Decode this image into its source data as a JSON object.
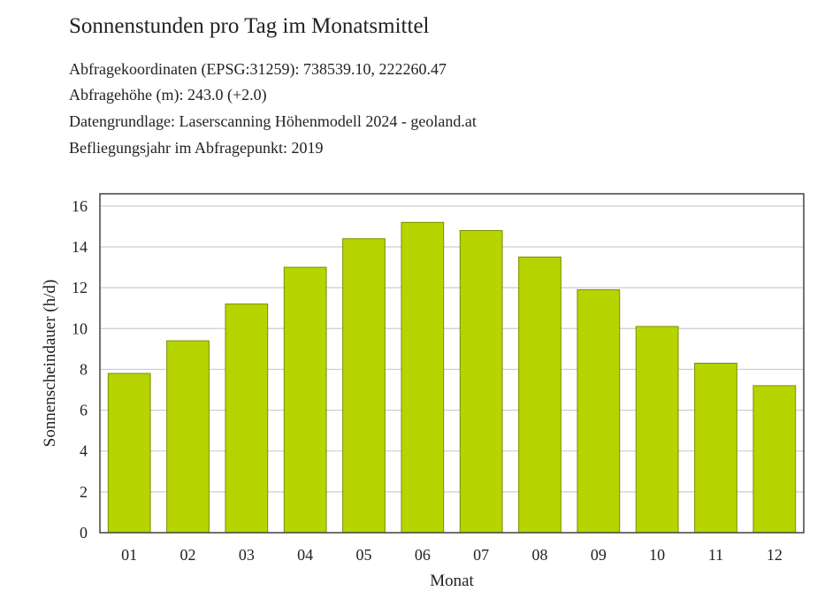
{
  "page": {
    "title": "Sonnenstunden pro Tag im Monatsmittel",
    "info_lines": [
      "Abfragekoordinaten (EPSG:31259): 738539.10, 222260.47",
      "Abfragehöhe (m): 243.0 (+2.0)",
      "Datengrundlage: Laserscanning Höhenmodell 2024 - geoland.at",
      "Befliegungsjahr im Abfragepunkt: 2019"
    ]
  },
  "chart_data": {
    "type": "bar",
    "xlabel": "Monat",
    "ylabel": "Sonnenscheindauer (h/d)",
    "categories": [
      "01",
      "02",
      "03",
      "04",
      "05",
      "06",
      "07",
      "08",
      "09",
      "10",
      "11",
      "12"
    ],
    "values": [
      7.8,
      9.4,
      11.2,
      13.0,
      14.4,
      15.2,
      14.8,
      13.5,
      11.9,
      10.1,
      8.3,
      7.2
    ],
    "ylim": [
      0,
      16.6
    ],
    "yticks": [
      0,
      2,
      4,
      6,
      8,
      10,
      12,
      14,
      16
    ],
    "grid": true,
    "bar_color": "#b5d400",
    "bar_edge_color": "#7a8f00",
    "grid_color": "#cccccc"
  }
}
